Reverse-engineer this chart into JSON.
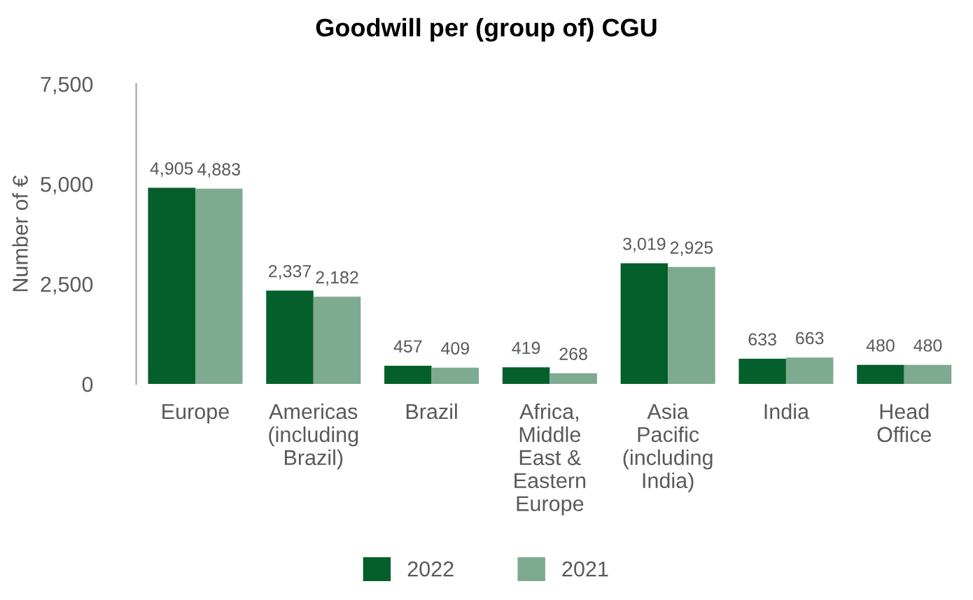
{
  "chart_data": {
    "type": "bar",
    "title": "Goodwill per (group of) CGU",
    "ylabel": "Number of €",
    "categories": [
      "Europe",
      "Americas\n(including\nBrazil)",
      "Brazil",
      "Africa,\nMiddle\nEast &\nEastern\nEurope",
      "Asia\nPacific\n(including\nIndia)",
      "India",
      "Head\nOffice"
    ],
    "series": [
      {
        "name": "2022",
        "color": "#055f2b",
        "values": [
          4905,
          2337,
          457,
          419,
          3019,
          633,
          480
        ],
        "value_labels": [
          "4,905",
          "2,337",
          "457",
          "419",
          "3,019",
          "633",
          "480"
        ]
      },
      {
        "name": "2021",
        "color": "#7eab90",
        "values": [
          4883,
          2182,
          409,
          268,
          2925,
          663,
          480
        ],
        "value_labels": [
          "4,883",
          "2,182",
          "409",
          "268",
          "2,925",
          "663",
          "480"
        ]
      }
    ],
    "ylim": [
      0,
      7500
    ],
    "yticks": [
      0,
      {
        "value": 2500,
        "label": "2,500"
      },
      {
        "value": 5000,
        "label": "5,000"
      },
      {
        "value": 7500,
        "label": "7,500"
      }
    ],
    "grid": false,
    "legend": "bottom"
  }
}
